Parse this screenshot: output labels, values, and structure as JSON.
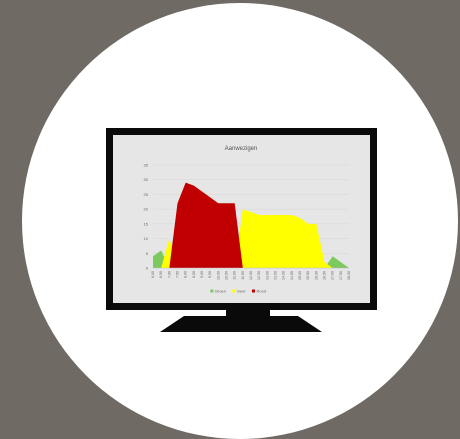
{
  "chart_data": {
    "type": "area",
    "title": "Aanwezigen",
    "ylim": [
      0,
      35
    ],
    "yticks": [
      0,
      5,
      10,
      15,
      20,
      25,
      30,
      35
    ],
    "categories": [
      "6,00",
      "6,50",
      "7,00",
      "7,50",
      "8,00",
      "8,50",
      "9,00",
      "9,50",
      "10,00",
      "10,50",
      "11,00",
      "11,50",
      "12,00",
      "12,50",
      "13,00",
      "13,50",
      "14,00",
      "14,50",
      "15,00",
      "15,50",
      "16,00",
      "16,50",
      "17,00",
      "17,50",
      "18,00"
    ],
    "series": [
      {
        "name": "Groen",
        "color": "#7dc95e",
        "values": [
          4,
          6,
          0,
          0,
          0,
          0,
          0,
          0,
          0,
          0,
          0,
          0,
          0,
          0,
          0,
          0,
          0,
          0,
          0,
          0,
          0,
          0,
          4,
          2,
          0
        ]
      },
      {
        "name": "Geel",
        "color": "#ffff00",
        "values": [
          0,
          0,
          10,
          0,
          0,
          0,
          0,
          0,
          0,
          0,
          0,
          20,
          19,
          18,
          18,
          18,
          18,
          18,
          17,
          15,
          15,
          2,
          0,
          0,
          0
        ]
      },
      {
        "name": "Rood",
        "color": "#c00000",
        "values": [
          0,
          0,
          0,
          22,
          29,
          28,
          26,
          24,
          22,
          22,
          22,
          0,
          0,
          0,
          0,
          0,
          0,
          0,
          0,
          0,
          0,
          0,
          0,
          0,
          0
        ]
      }
    ],
    "legend": "bottom",
    "grid": true
  }
}
